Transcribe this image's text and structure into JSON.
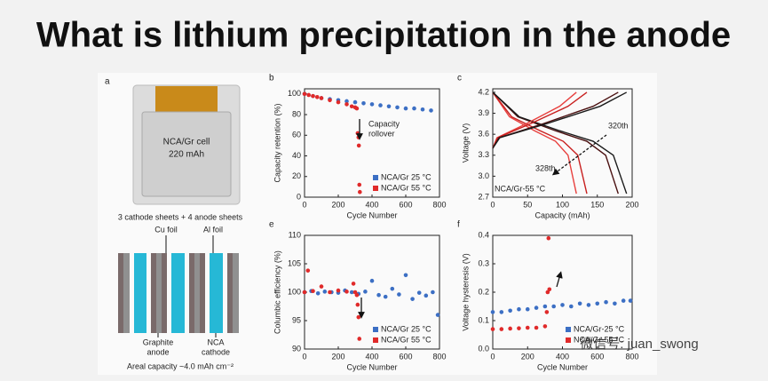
{
  "title": "What is lithium precipitation in the anode",
  "panel_a": {
    "label": "a",
    "cell_name": "NCA/Gr cell",
    "cell_capacity": "220 mAh",
    "sheets": "3 cathode sheets + 4 anode sheets",
    "cu_foil": "Cu foil",
    "al_foil": "Al foil",
    "anode_1": "Graphite",
    "anode_2": "anode",
    "cathode_1": "NCA",
    "cathode_2": "cathode",
    "areal": "Areal capacity ~4.0 mAh cm⁻²"
  },
  "watermark": "微信号: juan_swong",
  "chart_data": [
    {
      "type": "scatter",
      "panel": "b",
      "x_label": "Cycle Number",
      "y_label": "Capacity retention (%)",
      "legend": "lower right",
      "xlim": [
        0,
        800
      ],
      "xticks": [
        0,
        200,
        400,
        600,
        800
      ],
      "ylim": [
        0,
        105
      ],
      "yticks": [
        0,
        20,
        40,
        60,
        80,
        100
      ],
      "annotations": [
        "Capacity",
        "rollover"
      ],
      "series": [
        {
          "name": "NCA/Gr 25 °C",
          "color": "#3c6fc4",
          "x": [
            0,
            50,
            100,
            150,
            200,
            250,
            300,
            350,
            400,
            450,
            500,
            550,
            600,
            650,
            700,
            750
          ],
          "values": [
            100,
            98,
            96,
            95,
            94,
            93,
            92,
            91,
            90,
            89,
            88,
            87,
            86,
            86,
            85,
            84
          ]
        },
        {
          "name": "NCA/Gr 55 °C",
          "color": "#e02a2a",
          "x": [
            0,
            25,
            50,
            75,
            100,
            150,
            200,
            250,
            280,
            300,
            310,
            315,
            320,
            322,
            325,
            328
          ],
          "values": [
            100,
            99,
            98,
            97,
            96,
            94,
            92,
            90,
            88,
            87,
            86,
            62,
            58,
            50,
            12,
            5
          ]
        }
      ]
    },
    {
      "type": "line",
      "panel": "c",
      "x_label": "Capacity (mAh)",
      "y_label": "Voltage (V)",
      "xlim": [
        0,
        200
      ],
      "xticks": [
        0,
        50,
        100,
        150,
        200
      ],
      "ylim": [
        2.7,
        4.25
      ],
      "yticks": [
        2.7,
        {
          "value": 3,
          "label": "3.0"
        },
        3.3,
        3.6,
        3.9,
        4.2
      ],
      "annotations": [
        "320th",
        "328th",
        "NCA/Gr-55 °C"
      ],
      "series": [
        {
          "color": "#e8403e",
          "x": [
            0,
            24,
            60,
            90,
            108,
            120
          ],
          "values": [
            4.2,
            3.85,
            3.65,
            3.5,
            3.3,
            2.75
          ]
        },
        {
          "color": "#c8201f",
          "x": [
            0,
            27,
            68,
            101,
            122,
            135
          ],
          "values": [
            4.2,
            3.85,
            3.65,
            3.5,
            3.3,
            2.75
          ]
        },
        {
          "color": "#4a1010",
          "x": [
            0,
            36,
            90,
            135,
            162,
            180
          ],
          "values": [
            4.2,
            3.85,
            3.65,
            3.5,
            3.3,
            2.75
          ]
        },
        {
          "color": "#1a1a1a",
          "x": [
            0,
            38,
            96,
            144,
            173,
            192
          ],
          "values": [
            4.2,
            3.85,
            3.65,
            3.5,
            3.3,
            2.75
          ]
        },
        {
          "color": "#e8403e",
          "x": [
            0,
            6,
            48,
            96,
            120
          ],
          "values": [
            3.4,
            3.55,
            3.75,
            4.0,
            4.2
          ]
        },
        {
          "color": "#c8201f",
          "x": [
            0,
            7,
            54,
            108,
            135
          ],
          "values": [
            3.4,
            3.55,
            3.75,
            4.0,
            4.2
          ]
        },
        {
          "color": "#4a1010",
          "x": [
            0,
            9,
            72,
            144,
            180
          ],
          "values": [
            3.4,
            3.55,
            3.75,
            4.0,
            4.2
          ]
        },
        {
          "color": "#1a1a1a",
          "x": [
            0,
            10,
            77,
            154,
            192
          ],
          "values": [
            3.4,
            3.55,
            3.75,
            4.0,
            4.2
          ]
        }
      ]
    },
    {
      "type": "scatter",
      "panel": "e",
      "x_label": "Cycle Number",
      "y_label": "Columbic efficiency (%)",
      "legend": "lower right",
      "xlim": [
        0,
        800
      ],
      "xticks": [
        0,
        200,
        400,
        600,
        800
      ],
      "ylim": [
        90,
        110
      ],
      "yticks": [
        90,
        95,
        100,
        105,
        110
      ],
      "annotations": [],
      "series": [
        {
          "name": "NCA/Gr 25 °C",
          "color": "#3c6fc4",
          "x": [
            0,
            40,
            80,
            120,
            160,
            200,
            240,
            280,
            320,
            360,
            400,
            440,
            480,
            520,
            560,
            600,
            640,
            680,
            720,
            760,
            790
          ],
          "values": [
            100,
            100.2,
            99.8,
            100.1,
            100,
            99.9,
            100.3,
            100,
            99.7,
            100.1,
            102,
            99.5,
            99.2,
            100.6,
            99.6,
            103,
            98.8,
            99.9,
            99.4,
            100,
            96
          ]
        },
        {
          "name": "NCA/Gr 55 °C",
          "color": "#e02a2a",
          "x": [
            0,
            20,
            50,
            100,
            150,
            200,
            250,
            290,
            300,
            310,
            315,
            320,
            325
          ],
          "values": [
            100,
            103.8,
            100.2,
            101,
            100,
            100.3,
            100.1,
            101.5,
            100,
            99.5,
            97.8,
            95.6,
            91.8
          ]
        }
      ]
    },
    {
      "type": "scatter",
      "panel": "f",
      "x_label": "Cycle Number",
      "y_label": "Voltage hysteresis (V)",
      "legend": "lower right",
      "xlim": [
        0,
        800
      ],
      "xticks": [
        0,
        200,
        400,
        600,
        800
      ],
      "ylim": [
        0,
        0.4
      ],
      "yticks": [
        {
          "value": 0,
          "label": "0.0"
        },
        0.1,
        0.2,
        0.3,
        0.4
      ],
      "annotations": [],
      "series": [
        {
          "name": "NCA/Gr-25 °C",
          "color": "#3c6fc4",
          "x": [
            0,
            50,
            100,
            150,
            200,
            250,
            300,
            350,
            400,
            450,
            500,
            550,
            600,
            650,
            700,
            750,
            790
          ],
          "values": [
            0.13,
            0.13,
            0.135,
            0.14,
            0.14,
            0.145,
            0.15,
            0.15,
            0.155,
            0.15,
            0.16,
            0.155,
            0.16,
            0.165,
            0.16,
            0.17,
            0.17
          ]
        },
        {
          "name": "NCA/Gr-55 °C",
          "color": "#e02a2a",
          "x": [
            0,
            50,
            100,
            150,
            200,
            250,
            300,
            310,
            315,
            320,
            325
          ],
          "values": [
            0.07,
            0.07,
            0.072,
            0.073,
            0.075,
            0.075,
            0.08,
            0.13,
            0.2,
            0.39,
            0.21
          ]
        }
      ]
    }
  ]
}
